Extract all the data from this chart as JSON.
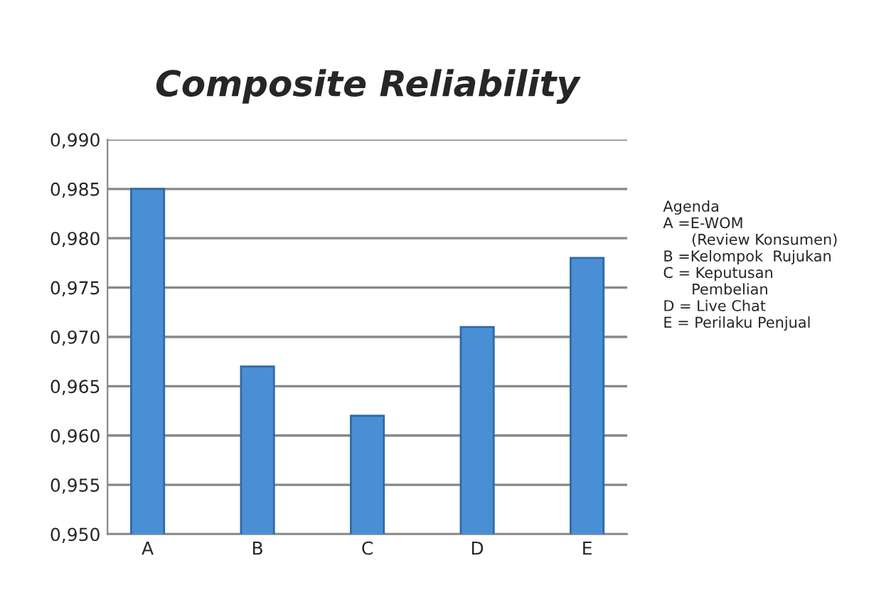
{
  "chart_data": {
    "type": "bar",
    "title": "Composite Reliability",
    "categories": [
      "A",
      "B",
      "C",
      "D",
      "E"
    ],
    "values": [
      0.985,
      0.967,
      0.962,
      0.971,
      0.978
    ],
    "color": "#4a8fd6",
    "ylim": [
      0.95,
      0.99
    ],
    "yticks": [
      {
        "value": 0.95,
        "label": "0,950"
      },
      {
        "value": 0.955,
        "label": "0,955"
      },
      {
        "value": 0.96,
        "label": "0,960"
      },
      {
        "value": 0.965,
        "label": "0,965"
      },
      {
        "value": 0.97,
        "label": "0,970"
      },
      {
        "value": 0.975,
        "label": "0,975"
      },
      {
        "value": 0.98,
        "label": "0,980"
      },
      {
        "value": 0.985,
        "label": "0,985"
      },
      {
        "value": 0.99,
        "label": "0,990"
      }
    ],
    "grid": "y",
    "annotations": [
      "Agenda\nA =E-WOM\n      (Review Konsumen)\nB =Kelompok  Rujukan\nC = Keputusan\n      Pembelian\nD = Live Chat\nE = Perilaku Penjual"
    ]
  }
}
